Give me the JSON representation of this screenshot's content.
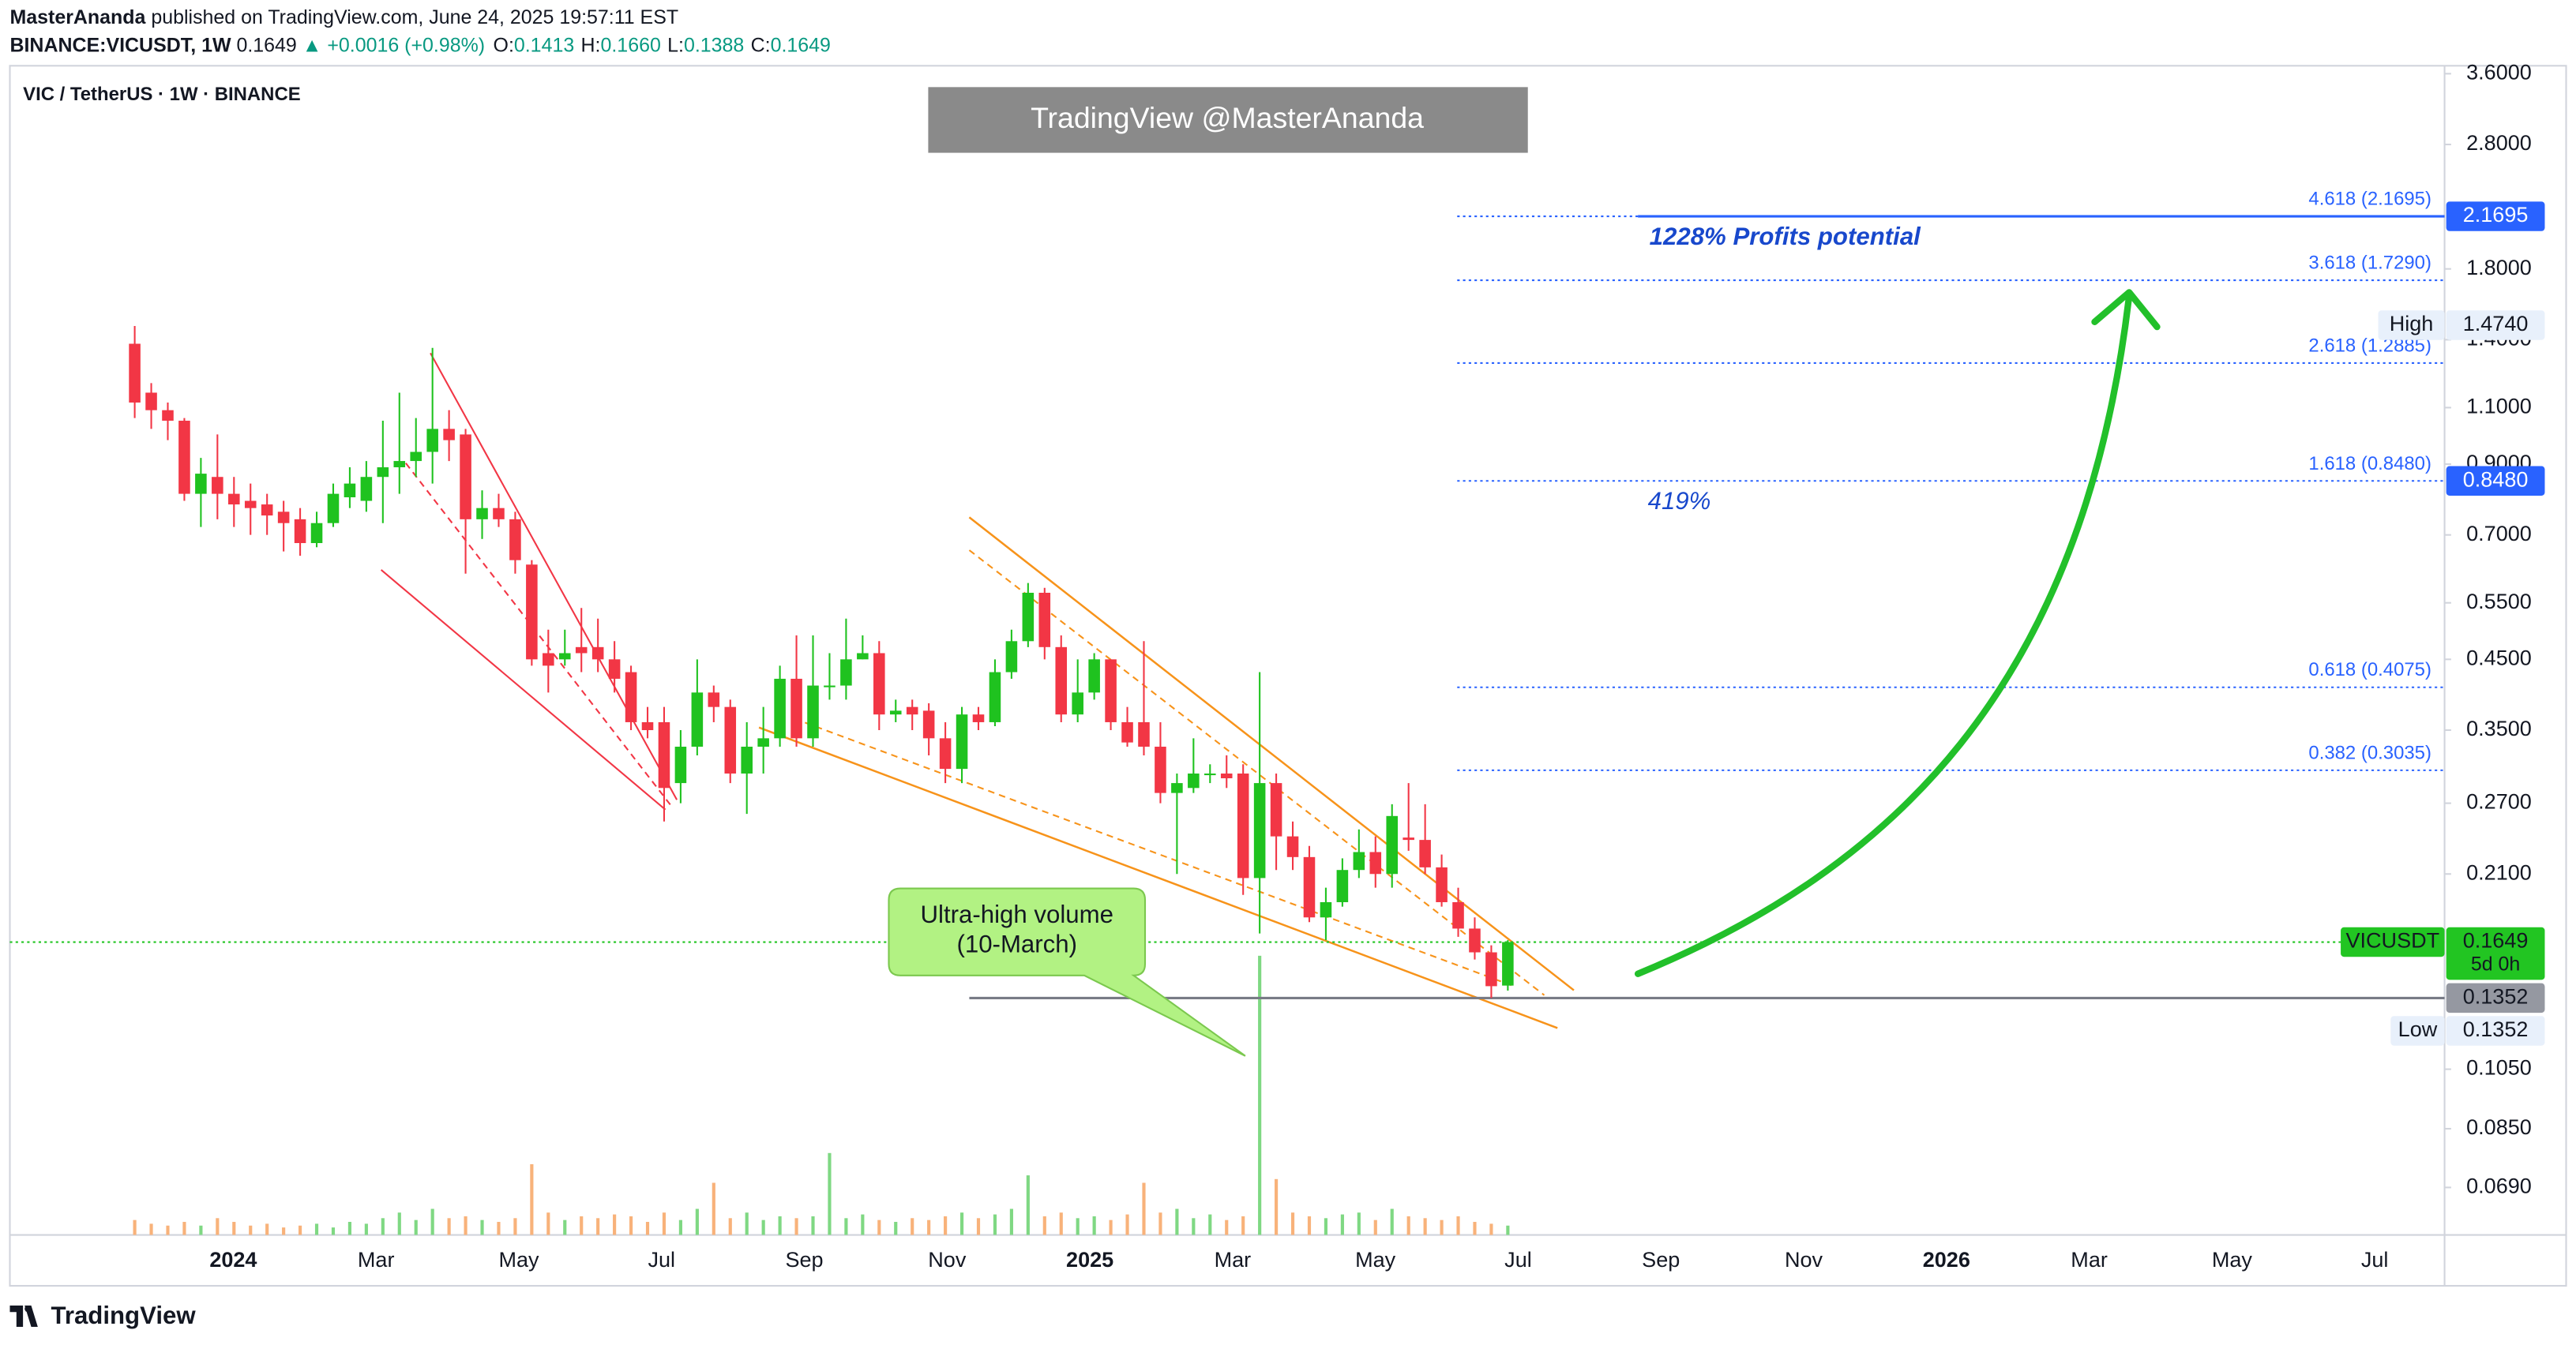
{
  "header": {
    "publisher": "MasterAnanda",
    "published": "published on TradingView.com, June 24, 2025 19:57:11 EST"
  },
  "chart_data": {
    "type": "candlestick",
    "symbol": "BINANCE:VICUSDT, 1W",
    "last": "0.1649",
    "change": "▲ +0.0016 (+0.98%)",
    "ohlc_labels": [
      {
        "key": "O:",
        "value": "0.1413"
      },
      {
        "key": "H:",
        "value": "0.1660"
      },
      {
        "key": "L:",
        "value": "0.1388"
      },
      {
        "key": "C:",
        "value": "0.1649"
      }
    ],
    "legend": "VIC / TetherUS · 1W · BINANCE",
    "watermark": "TradingView @MasterAnanda",
    "log_scale": true,
    "x_labels": [
      "2024",
      "Mar",
      "May",
      "Jul",
      "Sep",
      "Nov",
      "2025",
      "Mar",
      "May",
      "Jul",
      "Sep",
      "Nov",
      "2026",
      "Mar",
      "May",
      "Jul"
    ],
    "open": [
      1.38,
      1.16,
      1.09,
      1.05,
      0.81,
      0.86,
      0.81,
      0.79,
      0.78,
      0.76,
      0.74,
      0.68,
      0.73,
      0.8,
      0.79,
      0.86,
      0.89,
      0.91,
      0.94,
      1.02,
      1.0,
      0.74,
      0.77,
      0.74,
      0.63,
      0.46,
      0.45,
      0.47,
      0.47,
      0.45,
      0.43,
      0.36,
      0.36,
      0.29,
      0.33,
      0.4,
      0.38,
      0.3,
      0.33,
      0.34,
      0.42,
      0.34,
      0.41,
      0.41,
      0.45,
      0.46,
      0.37,
      0.38,
      0.375,
      0.34,
      0.305,
      0.37,
      0.36,
      0.43,
      0.48,
      0.57,
      0.47,
      0.37,
      0.4,
      0.45,
      0.36,
      0.36,
      0.33,
      0.28,
      0.285,
      0.3,
      0.3,
      0.3,
      0.207,
      0.29,
      0.24,
      0.223,
      0.18,
      0.19,
      0.213,
      0.227,
      0.21,
      0.239,
      0.237,
      0.215,
      0.19,
      0.173,
      0.159,
      0.1413
    ],
    "high": [
      1.47,
      1.2,
      1.12,
      1.06,
      0.92,
      1.0,
      0.86,
      0.84,
      0.81,
      0.79,
      0.77,
      0.76,
      0.84,
      0.89,
      0.91,
      1.05,
      1.16,
      1.06,
      1.36,
      1.09,
      1.02,
      0.82,
      0.81,
      0.76,
      0.64,
      0.5,
      0.5,
      0.54,
      0.52,
      0.48,
      0.44,
      0.38,
      0.38,
      0.35,
      0.45,
      0.41,
      0.39,
      0.36,
      0.38,
      0.44,
      0.49,
      0.49,
      0.46,
      0.52,
      0.49,
      0.48,
      0.39,
      0.39,
      0.385,
      0.36,
      0.38,
      0.38,
      0.45,
      0.5,
      0.59,
      0.58,
      0.49,
      0.45,
      0.46,
      0.45,
      0.38,
      0.48,
      0.36,
      0.3,
      0.34,
      0.31,
      0.32,
      0.31,
      0.43,
      0.3,
      0.253,
      0.232,
      0.2,
      0.222,
      0.246,
      0.24,
      0.269,
      0.29,
      0.269,
      0.225,
      0.2,
      0.18,
      0.163,
      0.166
    ],
    "low": [
      1.06,
      1.02,
      0.98,
      0.79,
      0.72,
      0.74,
      0.72,
      0.7,
      0.7,
      0.66,
      0.65,
      0.67,
      0.72,
      0.77,
      0.76,
      0.73,
      0.81,
      0.86,
      0.84,
      0.91,
      0.61,
      0.69,
      0.72,
      0.61,
      0.44,
      0.4,
      0.44,
      0.43,
      0.43,
      0.4,
      0.35,
      0.34,
      0.253,
      0.27,
      0.32,
      0.36,
      0.29,
      0.26,
      0.3,
      0.33,
      0.33,
      0.33,
      0.39,
      0.39,
      0.45,
      0.35,
      0.36,
      0.35,
      0.32,
      0.29,
      0.29,
      0.35,
      0.355,
      0.42,
      0.47,
      0.45,
      0.36,
      0.36,
      0.39,
      0.35,
      0.33,
      0.32,
      0.27,
      0.21,
      0.28,
      0.29,
      0.285,
      0.195,
      0.17,
      0.213,
      0.213,
      0.177,
      0.166,
      0.187,
      0.207,
      0.2,
      0.2,
      0.228,
      0.21,
      0.187,
      0.168,
      0.155,
      0.1352,
      0.1388
    ],
    "close": [
      1.12,
      1.09,
      1.05,
      0.81,
      0.87,
      0.81,
      0.78,
      0.77,
      0.75,
      0.73,
      0.68,
      0.73,
      0.81,
      0.84,
      0.86,
      0.89,
      0.91,
      0.94,
      1.02,
      0.98,
      0.74,
      0.77,
      0.74,
      0.64,
      0.45,
      0.44,
      0.46,
      0.46,
      0.45,
      0.42,
      0.36,
      0.35,
      0.285,
      0.33,
      0.4,
      0.38,
      0.3,
      0.33,
      0.34,
      0.42,
      0.34,
      0.41,
      0.41,
      0.45,
      0.46,
      0.37,
      0.375,
      0.37,
      0.34,
      0.305,
      0.37,
      0.36,
      0.43,
      0.48,
      0.57,
      0.47,
      0.37,
      0.4,
      0.45,
      0.36,
      0.335,
      0.33,
      0.28,
      0.29,
      0.3,
      0.3,
      0.295,
      0.207,
      0.29,
      0.24,
      0.223,
      0.18,
      0.19,
      0.213,
      0.227,
      0.21,
      0.258,
      0.237,
      0.215,
      0.19,
      0.173,
      0.159,
      0.141,
      0.1649
    ],
    "volume": [
      8,
      6,
      5,
      7,
      5,
      9,
      7,
      5,
      6,
      4,
      5,
      6,
      4,
      7,
      6,
      9,
      12,
      8,
      14,
      9,
      10,
      8,
      7,
      9,
      38,
      12,
      8,
      10,
      9,
      11,
      10,
      7,
      12,
      8,
      14,
      28,
      9,
      12,
      8,
      10,
      9,
      10,
      44,
      9,
      11,
      8,
      7,
      9,
      8,
      10,
      12,
      9,
      11,
      14,
      32,
      10,
      12,
      9,
      10,
      8,
      11,
      28,
      12,
      14,
      9,
      11,
      8,
      10,
      150,
      30,
      12,
      10,
      9,
      11,
      12,
      8,
      14,
      10,
      9,
      8,
      10,
      7,
      6,
      5
    ],
    "up_color": "#1fc21f",
    "down_color": "#f23645",
    "volume_up_color": "#7fd883",
    "volume_down_color": "#f8b27a",
    "ylim": [
      0.0583,
      3.66
    ],
    "yticks": [
      {
        "value": 3.6,
        "label": "3.6000"
      },
      {
        "value": 2.8,
        "label": "2.8000"
      },
      {
        "value": 1.8,
        "label": "1.8000"
      },
      {
        "value": 1.4,
        "label": "1.4000"
      },
      {
        "value": 1.1,
        "label": "1.1000"
      },
      {
        "value": 0.9,
        "label": "0.9000"
      },
      {
        "value": 0.7,
        "label": "0.7000"
      },
      {
        "value": 0.55,
        "label": "0.5500"
      },
      {
        "value": 0.45,
        "label": "0.4500"
      },
      {
        "value": 0.35,
        "label": "0.3500"
      },
      {
        "value": 0.27,
        "label": "0.2700"
      },
      {
        "value": 0.21,
        "label": "0.2100"
      },
      {
        "value": 0.105,
        "label": "0.1050"
      },
      {
        "value": 0.085,
        "label": "0.0850"
      },
      {
        "value": 0.069,
        "label": "0.0690"
      }
    ],
    "fib_levels": [
      {
        "value": 2.1695,
        "label": "4.618 (2.1695)"
      },
      {
        "value": 1.729,
        "label": "3.618 (1.7290)"
      },
      {
        "value": 1.2885,
        "label": "2.618 (1.2885)"
      },
      {
        "value": 0.848,
        "label": "1.618 (0.8480)"
      },
      {
        "value": 0.4075,
        "label": "0.618 (0.4075)"
      },
      {
        "value": 0.3035,
        "label": "0.382 (0.3035)"
      }
    ],
    "fib_color": "#2962ff",
    "price_markers": [
      {
        "value": 2.1695,
        "label": "2.1695",
        "color": "#2962ff",
        "text_color": "#ffffff",
        "line": "solid"
      },
      {
        "value": 0.848,
        "label": "0.8480",
        "color": "#2962ff",
        "text_color": "#ffffff"
      },
      {
        "name": "High",
        "value": 1.474,
        "label": "1.4740",
        "color": "#e8f0fb",
        "text_color": "#131722"
      },
      {
        "name": "VICUSDT",
        "value": 0.1649,
        "label": "0.1649",
        "countdown": "5d 0h",
        "color": "#22c522",
        "text_color": "#131722",
        "line": "dotted"
      },
      {
        "value": 0.1352,
        "label": "0.1352",
        "color": "#9598a1",
        "text_color": "#131722",
        "line": "solid"
      },
      {
        "name": "Low",
        "value": 0.1352,
        "label": "0.1352",
        "color": "#e8f0fb",
        "text_color": "#131722"
      }
    ],
    "annotations": {
      "callout": [
        "Ultra-high volume",
        "(10-March)"
      ],
      "target": "1228% Profits potential",
      "mid": "419%"
    }
  },
  "footer": "TradingView"
}
